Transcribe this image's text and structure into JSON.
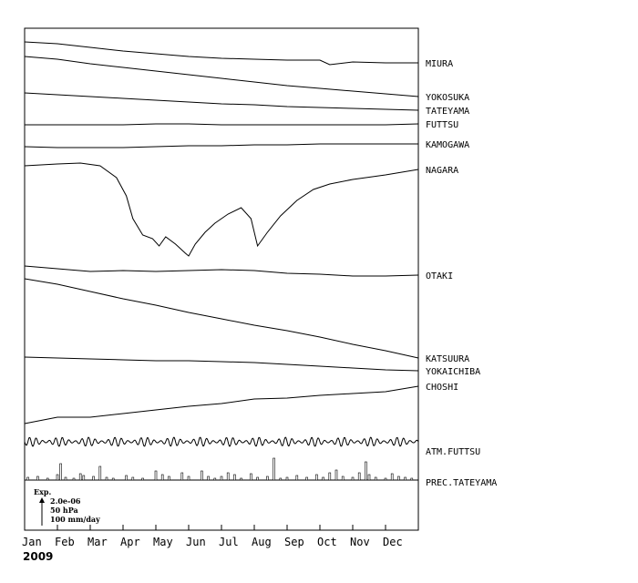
{
  "chart_data": {
    "type": "line",
    "year": "2009",
    "months": [
      "Jan",
      "Feb",
      "Mar",
      "Apr",
      "May",
      "Jun",
      "Jul",
      "Aug",
      "Sep",
      "Oct",
      "Nov",
      "Dec"
    ],
    "legend": {
      "title": "Exp.",
      "scales": [
        "2.0e-06",
        "50 hPa",
        "100 mm/day"
      ]
    },
    "series": [
      {
        "name": "MIURA",
        "values": [
          [
            0,
            46
          ],
          [
            1,
            48
          ],
          [
            2,
            52
          ],
          [
            3,
            56
          ],
          [
            4,
            59
          ],
          [
            5,
            62
          ],
          [
            6,
            64
          ],
          [
            7,
            65
          ],
          [
            8,
            66
          ],
          [
            9,
            66
          ],
          [
            9.3,
            71
          ],
          [
            10,
            68
          ],
          [
            11,
            69
          ],
          [
            12,
            69
          ]
        ]
      },
      {
        "name": "YOKOSUKA",
        "values": [
          [
            0,
            62
          ],
          [
            1,
            65
          ],
          [
            2,
            70
          ],
          [
            3,
            74
          ],
          [
            4,
            78
          ],
          [
            5,
            82
          ],
          [
            6,
            86
          ],
          [
            7,
            90
          ],
          [
            8,
            94
          ],
          [
            9,
            97
          ],
          [
            10,
            100
          ],
          [
            11,
            103
          ],
          [
            12,
            106
          ]
        ]
      },
      {
        "name": "TATEYAMA",
        "values": [
          [
            0,
            102
          ],
          [
            1,
            104
          ],
          [
            2,
            106
          ],
          [
            3,
            108
          ],
          [
            4,
            110
          ],
          [
            5,
            112
          ],
          [
            6,
            114
          ],
          [
            7,
            115
          ],
          [
            8,
            117
          ],
          [
            9,
            118
          ],
          [
            10,
            119
          ],
          [
            11,
            120
          ],
          [
            12,
            121
          ]
        ]
      },
      {
        "name": "FUTTSU",
        "values": [
          [
            0,
            137
          ],
          [
            1,
            137
          ],
          [
            2,
            137
          ],
          [
            3,
            137
          ],
          [
            4,
            136
          ],
          [
            5,
            136
          ],
          [
            6,
            137
          ],
          [
            7,
            137
          ],
          [
            8,
            137
          ],
          [
            9,
            137
          ],
          [
            10,
            137
          ],
          [
            11,
            137
          ],
          [
            12,
            136
          ]
        ]
      },
      {
        "name": "KAMOGAWA",
        "values": [
          [
            0,
            161
          ],
          [
            1,
            162
          ],
          [
            2,
            162
          ],
          [
            3,
            162
          ],
          [
            4,
            161
          ],
          [
            5,
            160
          ],
          [
            6,
            160
          ],
          [
            7,
            159
          ],
          [
            8,
            159
          ],
          [
            9,
            158
          ],
          [
            10,
            158
          ],
          [
            11,
            158
          ],
          [
            12,
            158
          ]
        ]
      },
      {
        "name": "NAGARA",
        "values": [
          [
            0,
            182
          ],
          [
            1,
            180
          ],
          [
            1.7,
            179
          ],
          [
            2.3,
            182
          ],
          [
            2.8,
            195
          ],
          [
            3.1,
            215
          ],
          [
            3.3,
            240
          ],
          [
            3.6,
            258
          ],
          [
            3.9,
            262
          ],
          [
            4.1,
            270
          ],
          [
            4.3,
            260
          ],
          [
            4.6,
            268
          ],
          [
            4.9,
            278
          ],
          [
            5.0,
            281
          ],
          [
            5.2,
            268
          ],
          [
            5.5,
            255
          ],
          [
            5.8,
            245
          ],
          [
            6.2,
            235
          ],
          [
            6.6,
            228
          ],
          [
            6.9,
            240
          ],
          [
            7.1,
            270
          ],
          [
            7.4,
            255
          ],
          [
            7.8,
            237
          ],
          [
            8.3,
            220
          ],
          [
            8.8,
            208
          ],
          [
            9.3,
            202
          ],
          [
            10,
            197
          ],
          [
            11,
            192
          ],
          [
            12,
            186
          ]
        ]
      },
      {
        "name": "OTAKI",
        "values": [
          [
            0,
            292
          ],
          [
            1,
            295
          ],
          [
            2,
            298
          ],
          [
            3,
            297
          ],
          [
            4,
            298
          ],
          [
            5,
            297
          ],
          [
            6,
            296
          ],
          [
            7,
            297
          ],
          [
            8,
            300
          ],
          [
            9,
            301
          ],
          [
            10,
            303
          ],
          [
            11,
            303
          ],
          [
            12,
            302
          ]
        ]
      },
      {
        "name": "KATSUURA",
        "values": [
          [
            0,
            306
          ],
          [
            1,
            312
          ],
          [
            2,
            320
          ],
          [
            3,
            328
          ],
          [
            4,
            335
          ],
          [
            5,
            343
          ],
          [
            6,
            350
          ],
          [
            7,
            357
          ],
          [
            8,
            363
          ],
          [
            9,
            370
          ],
          [
            10,
            378
          ],
          [
            11,
            385
          ],
          [
            12,
            393
          ]
        ]
      },
      {
        "name": "YOKAICHIBA",
        "values": [
          [
            0,
            392
          ],
          [
            1,
            393
          ],
          [
            2,
            394
          ],
          [
            3,
            395
          ],
          [
            4,
            396
          ],
          [
            5,
            396
          ],
          [
            6,
            397
          ],
          [
            7,
            398
          ],
          [
            8,
            400
          ],
          [
            9,
            402
          ],
          [
            10,
            404
          ],
          [
            11,
            406
          ],
          [
            12,
            407
          ]
        ]
      },
      {
        "name": "CHOSHI",
        "values": [
          [
            0,
            465
          ],
          [
            1,
            458
          ],
          [
            2,
            458
          ],
          [
            3,
            454
          ],
          [
            4,
            450
          ],
          [
            5,
            446
          ],
          [
            6,
            443
          ],
          [
            7,
            438
          ],
          [
            8,
            437
          ],
          [
            9,
            434
          ],
          [
            10,
            432
          ],
          [
            11,
            430
          ],
          [
            12,
            424
          ]
        ]
      }
    ],
    "atm_series": {
      "name": "ATM.FUTTSU",
      "base": 485,
      "amplitude": 5,
      "cycles": 60
    },
    "precip_series": {
      "name": "PREC.TATEYAMA",
      "bars": [
        [
          0.1,
          3
        ],
        [
          0.4,
          4
        ],
        [
          0.7,
          2
        ],
        [
          1.0,
          6
        ],
        [
          1.1,
          18
        ],
        [
          1.25,
          3
        ],
        [
          1.5,
          2
        ],
        [
          1.7,
          7
        ],
        [
          1.8,
          5
        ],
        [
          2.1,
          4
        ],
        [
          2.3,
          15
        ],
        [
          2.5,
          3
        ],
        [
          2.7,
          2
        ],
        [
          3.1,
          5
        ],
        [
          3.3,
          3
        ],
        [
          3.6,
          2
        ],
        [
          4.0,
          10
        ],
        [
          4.2,
          6
        ],
        [
          4.4,
          4
        ],
        [
          4.8,
          8
        ],
        [
          5.0,
          4
        ],
        [
          5.4,
          10
        ],
        [
          5.6,
          4
        ],
        [
          5.8,
          2
        ],
        [
          6.0,
          4
        ],
        [
          6.2,
          8
        ],
        [
          6.4,
          6
        ],
        [
          6.6,
          2
        ],
        [
          6.9,
          7
        ],
        [
          7.1,
          3
        ],
        [
          7.4,
          4
        ],
        [
          7.6,
          24
        ],
        [
          7.8,
          2
        ],
        [
          8.0,
          3
        ],
        [
          8.3,
          5
        ],
        [
          8.6,
          3
        ],
        [
          8.9,
          6
        ],
        [
          9.1,
          3
        ],
        [
          9.3,
          8
        ],
        [
          9.5,
          11
        ],
        [
          9.7,
          4
        ],
        [
          10.0,
          3
        ],
        [
          10.2,
          8
        ],
        [
          10.4,
          20
        ],
        [
          10.5,
          6
        ],
        [
          10.7,
          3
        ],
        [
          11.0,
          2
        ],
        [
          11.2,
          7
        ],
        [
          11.4,
          4
        ],
        [
          11.6,
          3
        ],
        [
          11.8,
          2
        ]
      ]
    }
  }
}
